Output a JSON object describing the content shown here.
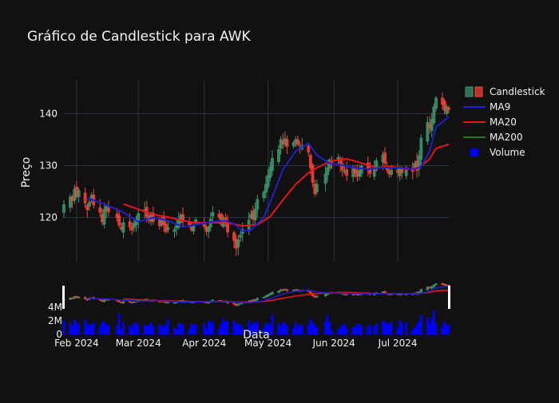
{
  "colors": {
    "background": "#111111",
    "grid": "#283442",
    "increasing": "#3d9970",
    "decreasing": "#ff4136",
    "ma9": "#1f1fcc",
    "ma20": "#e8141e",
    "ma200": "#1b7a1b",
    "volume": "#0000ff",
    "text": "#f2f2f2"
  },
  "chart_data": {
    "type": "candlestick",
    "title": "Gráfico de Candlestick para AWK",
    "xlabel": "Data",
    "ylabel": "Preço",
    "x_range": [
      "2024-01-26",
      "2024-07-25"
    ],
    "y_range": [
      111.5,
      146.5
    ],
    "y_ticks": [
      120,
      130,
      140
    ],
    "x_ticks": [
      {
        "date": "2024-02-01",
        "label": "Feb 2024"
      },
      {
        "date": "2024-03-01",
        "label": "Mar 2024"
      },
      {
        "date": "2024-04-01",
        "label": "Apr 2024"
      },
      {
        "date": "2024-05-01",
        "label": "May 2024"
      },
      {
        "date": "2024-06-01",
        "label": "Jun 2024"
      },
      {
        "date": "2024-07-01",
        "label": "Jul 2024"
      }
    ],
    "legend": {
      "placement": "top-right",
      "entries": [
        "Candlestick",
        "MA9",
        "MA20",
        "MA200",
        "Volume"
      ]
    },
    "closes": [
      [
        "2024-01-26",
        122.5
      ],
      [
        "2024-01-29",
        124.0
      ],
      [
        "2024-01-30",
        123.2
      ],
      [
        "2024-01-31",
        125.5
      ],
      [
        "2024-02-01",
        124.0
      ],
      [
        "2024-02-02",
        125.2
      ],
      [
        "2024-02-05",
        122.8
      ],
      [
        "2024-02-06",
        121.5
      ],
      [
        "2024-02-07",
        123.0
      ],
      [
        "2024-02-08",
        124.3
      ],
      [
        "2024-02-09",
        122.4
      ],
      [
        "2024-02-12",
        121.0
      ],
      [
        "2024-02-13",
        119.2
      ],
      [
        "2024-02-14",
        121.6
      ],
      [
        "2024-02-15",
        122.2
      ],
      [
        "2024-02-16",
        121.1
      ],
      [
        "2024-02-20",
        120.0
      ],
      [
        "2024-02-21",
        118.5
      ],
      [
        "2024-02-22",
        117.8
      ],
      [
        "2024-02-23",
        119.0
      ],
      [
        "2024-02-26",
        118.2
      ],
      [
        "2024-02-27",
        117.6
      ],
      [
        "2024-02-28",
        118.9
      ],
      [
        "2024-02-29",
        119.7
      ],
      [
        "2024-03-01",
        120.8
      ],
      [
        "2024-03-04",
        121.5
      ],
      [
        "2024-03-05",
        120.2
      ],
      [
        "2024-03-06",
        119.5
      ],
      [
        "2024-03-07",
        120.6
      ],
      [
        "2024-03-08",
        119.2
      ],
      [
        "2024-03-11",
        118.4
      ],
      [
        "2024-03-12",
        119.6
      ],
      [
        "2024-03-13",
        118.6
      ],
      [
        "2024-03-14",
        117.3
      ],
      [
        "2024-03-15",
        118.0
      ],
      [
        "2024-03-18",
        117.7
      ],
      [
        "2024-03-19",
        118.5
      ],
      [
        "2024-03-20",
        119.7
      ],
      [
        "2024-03-21",
        120.5
      ],
      [
        "2024-03-22",
        119.6
      ],
      [
        "2024-03-25",
        118.5
      ],
      [
        "2024-03-26",
        117.6
      ],
      [
        "2024-03-27",
        118.6
      ],
      [
        "2024-03-28",
        119.6
      ],
      [
        "2024-04-01",
        118.3
      ],
      [
        "2024-04-02",
        117.4
      ],
      [
        "2024-04-03",
        118.2
      ],
      [
        "2024-04-04",
        119.7
      ],
      [
        "2024-04-05",
        121.0
      ],
      [
        "2024-04-08",
        120.1
      ],
      [
        "2024-04-09",
        118.7
      ],
      [
        "2024-04-10",
        119.8
      ],
      [
        "2024-04-11",
        119.0
      ],
      [
        "2024-04-12",
        117.2
      ],
      [
        "2024-04-15",
        115.6
      ],
      [
        "2024-04-16",
        114.1
      ],
      [
        "2024-04-17",
        115.7
      ],
      [
        "2024-04-18",
        116.6
      ],
      [
        "2024-04-19",
        117.7
      ],
      [
        "2024-04-22",
        119.5
      ],
      [
        "2024-04-23",
        120.6
      ],
      [
        "2024-04-24",
        119.7
      ],
      [
        "2024-04-25",
        121.6
      ],
      [
        "2024-04-26",
        123.5
      ],
      [
        "2024-04-29",
        124.9
      ],
      [
        "2024-04-30",
        126.4
      ],
      [
        "2024-05-01",
        128.1
      ],
      [
        "2024-05-02",
        129.7
      ],
      [
        "2024-05-03",
        131.4
      ],
      [
        "2024-05-06",
        133.1
      ],
      [
        "2024-05-07",
        135.0
      ],
      [
        "2024-05-08",
        134.2
      ],
      [
        "2024-05-09",
        135.2
      ],
      [
        "2024-05-10",
        133.7
      ],
      [
        "2024-05-13",
        134.4
      ],
      [
        "2024-05-14",
        135.0
      ],
      [
        "2024-05-15",
        134.0
      ],
      [
        "2024-05-16",
        133.2
      ],
      [
        "2024-05-17",
        133.9
      ],
      [
        "2024-05-20",
        132.6
      ],
      [
        "2024-05-21",
        129.6
      ],
      [
        "2024-05-22",
        126.8
      ],
      [
        "2024-05-23",
        124.6
      ],
      [
        "2024-05-24",
        126.4
      ],
      [
        "2024-05-28",
        128.4
      ],
      [
        "2024-05-29",
        129.6
      ],
      [
        "2024-05-30",
        131.1
      ],
      [
        "2024-05-31",
        130.4
      ],
      [
        "2024-06-03",
        131.6
      ],
      [
        "2024-06-04",
        130.2
      ],
      [
        "2024-06-05",
        129.1
      ],
      [
        "2024-06-06",
        128.9
      ],
      [
        "2024-06-07",
        128.1
      ],
      [
        "2024-06-10",
        129.4
      ],
      [
        "2024-06-11",
        128.5
      ],
      [
        "2024-06-12",
        127.9
      ],
      [
        "2024-06-13",
        129.1
      ],
      [
        "2024-06-14",
        129.9
      ],
      [
        "2024-06-17",
        129.4
      ],
      [
        "2024-06-18",
        128.5
      ],
      [
        "2024-06-20",
        129.6
      ],
      [
        "2024-06-21",
        130.9
      ],
      [
        "2024-06-24",
        132.0
      ],
      [
        "2024-06-25",
        130.4
      ],
      [
        "2024-06-26",
        129.1
      ],
      [
        "2024-06-27",
        128.3
      ],
      [
        "2024-06-28",
        129.1
      ],
      [
        "2024-07-01",
        128.6
      ],
      [
        "2024-07-02",
        129.6
      ],
      [
        "2024-07-03",
        128.6
      ],
      [
        "2024-07-05",
        129.6
      ],
      [
        "2024-07-08",
        128.9
      ],
      [
        "2024-07-09",
        130.4
      ],
      [
        "2024-07-10",
        129.1
      ],
      [
        "2024-07-11",
        131.9
      ],
      [
        "2024-07-12",
        135.3
      ],
      [
        "2024-07-15",
        138.3
      ],
      [
        "2024-07-16",
        137.2
      ],
      [
        "2024-07-17",
        138.9
      ],
      [
        "2024-07-18",
        141.3
      ],
      [
        "2024-07-19",
        143.0
      ],
      [
        "2024-07-22",
        141.8
      ],
      [
        "2024-07-23",
        140.6
      ],
      [
        "2024-07-24",
        141.3
      ],
      [
        "2024-07-25",
        140.8
      ]
    ],
    "ma9": [
      [
        "2024-02-06",
        123.8
      ],
      [
        "2024-02-15",
        122.4
      ],
      [
        "2024-02-22",
        121.2
      ],
      [
        "2024-03-01",
        119.2
      ],
      [
        "2024-03-08",
        120.0
      ],
      [
        "2024-03-15",
        119.4
      ],
      [
        "2024-03-22",
        118.2
      ],
      [
        "2024-03-28",
        118.6
      ],
      [
        "2024-04-05",
        119.2
      ],
      [
        "2024-04-11",
        119.4
      ],
      [
        "2024-04-15",
        118.8
      ],
      [
        "2024-04-19",
        117.4
      ],
      [
        "2024-04-23",
        117.6
      ],
      [
        "2024-04-29",
        120.0
      ],
      [
        "2024-05-03",
        124.0
      ],
      [
        "2024-05-08",
        129.2
      ],
      [
        "2024-05-14",
        132.8
      ],
      [
        "2024-05-20",
        134.3
      ],
      [
        "2024-05-24",
        132.0
      ],
      [
        "2024-05-30",
        130.4
      ],
      [
        "2024-06-04",
        130.2
      ],
      [
        "2024-06-10",
        129.6
      ],
      [
        "2024-06-17",
        129.3
      ],
      [
        "2024-06-24",
        129.6
      ],
      [
        "2024-07-01",
        129.6
      ],
      [
        "2024-07-09",
        129.3
      ],
      [
        "2024-07-12",
        129.8
      ],
      [
        "2024-07-16",
        132.8
      ],
      [
        "2024-07-19",
        137.4
      ],
      [
        "2024-07-25",
        139.4
      ]
    ],
    "ma20": [
      [
        "2024-02-23",
        122.6
      ],
      [
        "2024-03-01",
        121.6
      ],
      [
        "2024-03-08",
        120.6
      ],
      [
        "2024-03-15",
        120.1
      ],
      [
        "2024-03-22",
        119.4
      ],
      [
        "2024-03-28",
        119.0
      ],
      [
        "2024-04-05",
        119.0
      ],
      [
        "2024-04-12",
        119.0
      ],
      [
        "2024-04-19",
        118.4
      ],
      [
        "2024-04-26",
        118.6
      ],
      [
        "2024-05-02",
        120.2
      ],
      [
        "2024-05-08",
        123.4
      ],
      [
        "2024-05-14",
        126.4
      ],
      [
        "2024-05-20",
        128.6
      ],
      [
        "2024-05-24",
        129.6
      ],
      [
        "2024-05-31",
        130.9
      ],
      [
        "2024-06-07",
        131.3
      ],
      [
        "2024-06-13",
        130.6
      ],
      [
        "2024-06-21",
        129.6
      ],
      [
        "2024-06-28",
        129.8
      ],
      [
        "2024-07-05",
        129.3
      ],
      [
        "2024-07-11",
        129.6
      ],
      [
        "2024-07-16",
        131.3
      ],
      [
        "2024-07-19",
        133.3
      ],
      [
        "2024-07-25",
        134.1
      ]
    ],
    "ma200": [],
    "volume_ticks": [
      {
        "value": 0,
        "label": "0"
      },
      {
        "value": 2000000,
        "label": "2M"
      },
      {
        "value": 4000000,
        "label": "4M"
      }
    ]
  }
}
